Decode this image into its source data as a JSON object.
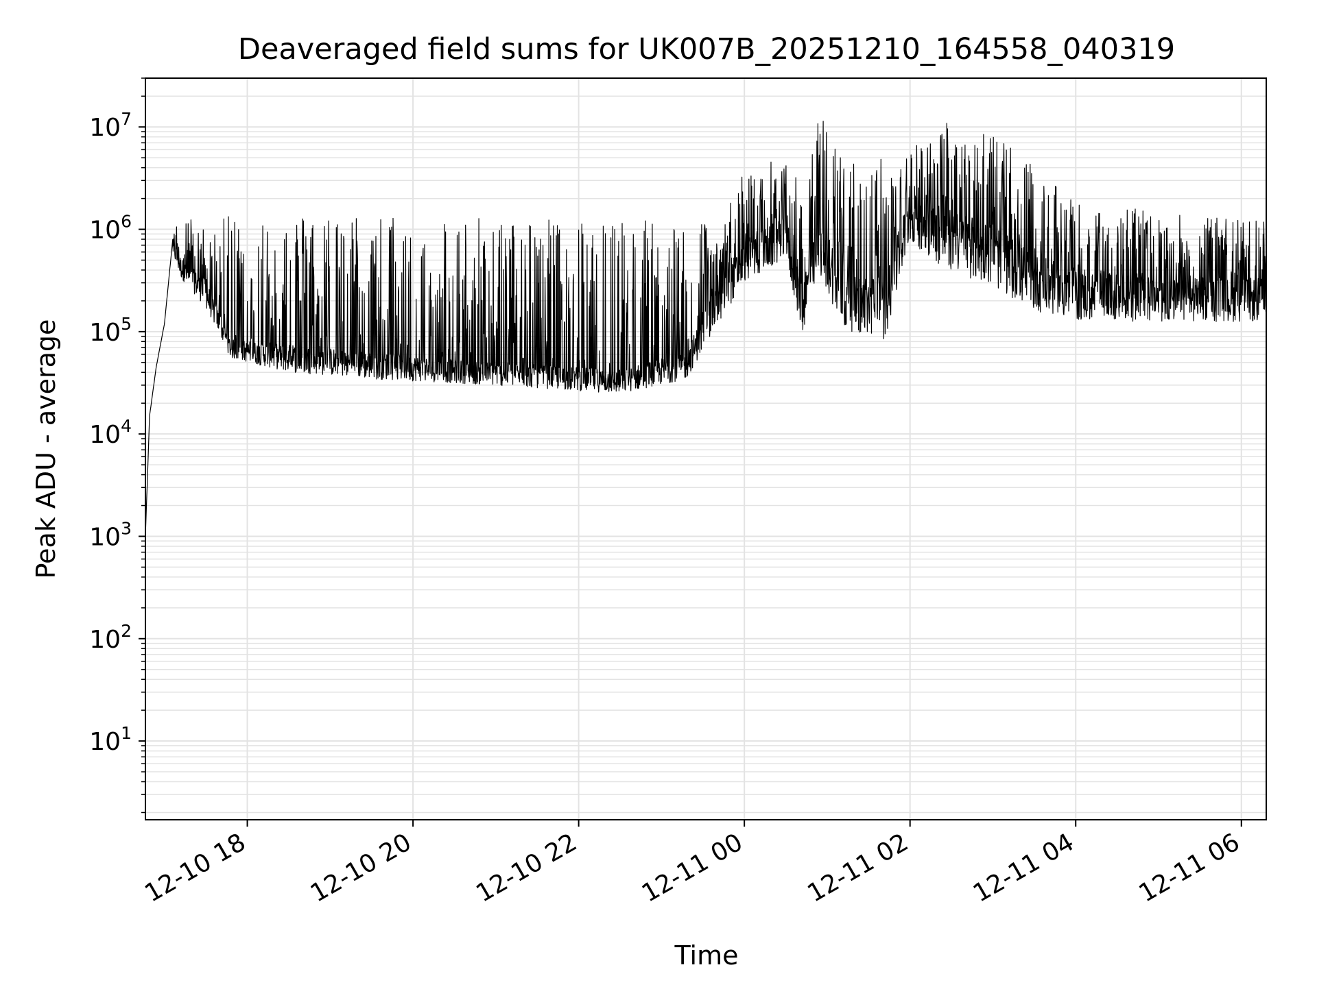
{
  "chart_data": {
    "type": "line",
    "title": "Deaveraged field sums for UK007B_20251210_164558_040319",
    "xlabel": "Time",
    "ylabel": "Peak ADU - average",
    "yscale": "log",
    "ylim": [
      1.7,
      30000000
    ],
    "xlim_hours": [
      16.77,
      30.3
    ],
    "x_tick_labels": [
      "12-10 18",
      "12-10 20",
      "12-10 22",
      "12-11 00",
      "12-11 02",
      "12-11 04",
      "12-11 06"
    ],
    "x_tick_hours": [
      18,
      20,
      22,
      24,
      26,
      28,
      30
    ],
    "y_tick_base": "10",
    "y_tick_exponents": [
      "1",
      "2",
      "3",
      "4",
      "5",
      "6",
      "7"
    ],
    "grid": true,
    "line_color": "#000000",
    "grid_color": "#e3e3e3",
    "series": [
      {
        "name": "Deaveraged field sum",
        "envelope": [
          {
            "t": 16.77,
            "lo": 1000,
            "mid": 1000,
            "hi": 1000
          },
          {
            "t": 16.82,
            "lo": 10000,
            "mid": 15000,
            "hi": 20000
          },
          {
            "t": 16.9,
            "lo": 40000,
            "mid": 45000,
            "hi": 50000
          },
          {
            "t": 17.0,
            "lo": 60000,
            "mid": 120000,
            "hi": 200000
          },
          {
            "t": 17.1,
            "lo": 500000,
            "mid": 800000,
            "hi": 1000000
          },
          {
            "t": 17.2,
            "lo": 300000,
            "mid": 500000,
            "hi": 1500000
          },
          {
            "t": 17.5,
            "lo": 150000,
            "mid": 300000,
            "hi": 1000000
          },
          {
            "t": 17.8,
            "lo": 50000,
            "mid": 80000,
            "hi": 1400000
          },
          {
            "t": 18.5,
            "lo": 35000,
            "mid": 70000,
            "hi": 1400000
          },
          {
            "t": 19.5,
            "lo": 30000,
            "mid": 60000,
            "hi": 1400000
          },
          {
            "t": 20.5,
            "lo": 28000,
            "mid": 50000,
            "hi": 1300000
          },
          {
            "t": 21.5,
            "lo": 25000,
            "mid": 45000,
            "hi": 1300000
          },
          {
            "t": 22.5,
            "lo": 22000,
            "mid": 40000,
            "hi": 1300000
          },
          {
            "t": 23.3,
            "lo": 30000,
            "mid": 60000,
            "hi": 1400000
          },
          {
            "t": 23.7,
            "lo": 100000,
            "mid": 300000,
            "hi": 1000000
          },
          {
            "t": 24.0,
            "lo": 250000,
            "mid": 700000,
            "hi": 4000000
          },
          {
            "t": 24.5,
            "lo": 400000,
            "mid": 1200000,
            "hi": 5000000
          },
          {
            "t": 24.7,
            "lo": 70000,
            "mid": 300000,
            "hi": 3000000
          },
          {
            "t": 24.9,
            "lo": 300000,
            "mid": 1000000,
            "hi": 14000000
          },
          {
            "t": 25.2,
            "lo": 80000,
            "mid": 300000,
            "hi": 5000000
          },
          {
            "t": 25.7,
            "lo": 60000,
            "mid": 300000,
            "hi": 5000000
          },
          {
            "t": 26.0,
            "lo": 600000,
            "mid": 2000000,
            "hi": 6000000
          },
          {
            "t": 26.4,
            "lo": 300000,
            "mid": 1500000,
            "hi": 12000000
          },
          {
            "t": 27.0,
            "lo": 200000,
            "mid": 1000000,
            "hi": 9000000
          },
          {
            "t": 27.5,
            "lo": 120000,
            "mid": 500000,
            "hi": 4000000
          },
          {
            "t": 28.0,
            "lo": 100000,
            "mid": 350000,
            "hi": 1800000
          },
          {
            "t": 29.0,
            "lo": 100000,
            "mid": 300000,
            "hi": 1500000
          },
          {
            "t": 30.3,
            "lo": 100000,
            "mid": 300000,
            "hi": 1200000
          }
        ]
      }
    ]
  }
}
